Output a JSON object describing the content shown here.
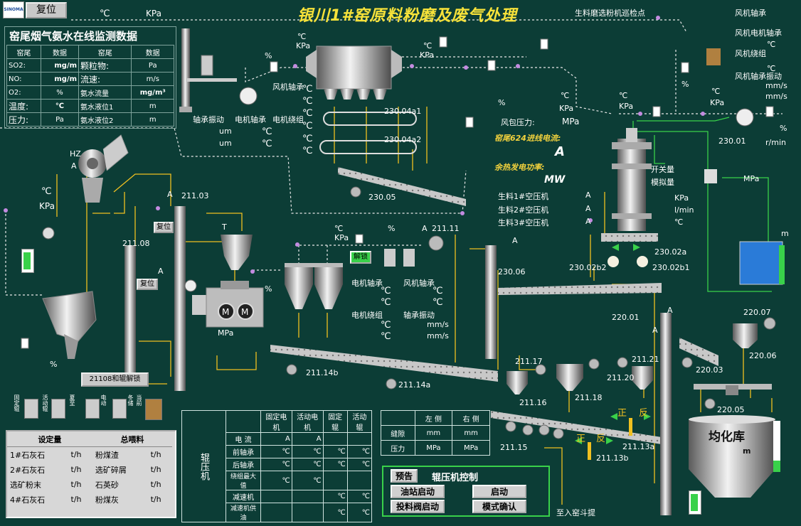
{
  "brand": {
    "logo": "SINOMA"
  },
  "header": {
    "reset_label": "复位",
    "title": "银川1#窑原料粉磨及废气处理",
    "top_temp": "℃",
    "top_kpa": "KPa",
    "patrol": "生料磨选粉机巡检点"
  },
  "monitor": {
    "title": "窑尾烟气氨水在线监测数据",
    "headers": [
      "窑尾",
      "数据",
      "窑尾",
      "数据"
    ],
    "rows": [
      [
        "SO2:",
        "mg/m",
        "颗粒物:",
        "Pa"
      ],
      [
        "NO:",
        "mg/m",
        "流速:",
        "m/s"
      ],
      [
        "O2:",
        "%",
        "氨水流量",
        "mg/m³"
      ],
      [
        "温度:",
        "℃",
        "氨水液位1",
        "m"
      ],
      [
        "压力:",
        "Pa",
        "氨水液位2",
        "m"
      ]
    ]
  },
  "labels": {
    "fan_bearing": "风机轴承",
    "motor_bearing": "电机轴承",
    "motor_winding": "电机绕组",
    "bearing_vib": "轴承振动",
    "um": "um",
    "hz": "HZ",
    "a": "A",
    "c": "℃",
    "kpa": "KPa",
    "mpa": "MPa",
    "pct": "%",
    "ms": "mm/s",
    "rmin": "r/min",
    "m": "m",
    "lmin": "l/min",
    "mw": "MW",
    "t": "T",
    "e23004a1": "230.04a1",
    "e23004a2": "230.04a2",
    "e23005": "230.05",
    "e23001": "230.01",
    "e23002a": "230.02a",
    "e23002b1": "230.02b1",
    "e23002b2": "230.02b2",
    "e23006": "230.06",
    "e22001": "220.01",
    "e22007": "220.07",
    "e22006": "220.06",
    "e22003": "220.03",
    "e22005": "220.05",
    "e21103": "211.03",
    "e21108": "211.08",
    "e21111": "211.11",
    "e21114b": "211.14b",
    "e21114a": "211.14a",
    "e21117": "211.17",
    "e21116": "211.16",
    "e21118": "211.18",
    "e21121": "211.21",
    "e21120": "211.20",
    "e21115": "211.15",
    "e21113a": "211.13a",
    "e21113b": "211.13b",
    "wind_pressure": "风包压力:",
    "kiln_current": "窑尾624进线电流:",
    "waste_heat": "余热发电功率:",
    "comp1": "生料1#空压机",
    "comp2": "生料2#空压机",
    "comp3": "生料3#空压机",
    "switch_qty": "开关量",
    "analog_qty": "模拟量",
    "homog": "均化库",
    "forward": "正",
    "reverse": "反",
    "to_kiln": "至入窑斗提",
    "unlock": "解锁",
    "rf_fan_bearing": "风机轴承",
    "rf_motor_fan_bearing": "风机电机轴承",
    "rf_fan_winding": "风机绕组",
    "rf_fan_vib": "风机轴承振动",
    "reset": "复位",
    "unlock_21108": "21108和辊解锁"
  },
  "side_labels": [
    "固定辊",
    "活动辊",
    "夏至",
    "电动",
    "冬储",
    "当前"
  ],
  "setpoint": {
    "h1": "设定量",
    "h2": "总喂料",
    "rows": [
      [
        "1#石灰石",
        "t/h",
        "粉煤渣",
        "t/h"
      ],
      [
        "2#石灰石",
        "t/h",
        "选矿碎屑",
        "t/h"
      ],
      [
        "选矿粉末",
        "t/h",
        "石英砂",
        "t/h"
      ],
      [
        "4#石灰石",
        "t/h",
        "粉煤灰",
        "t/h"
      ]
    ]
  },
  "roller": {
    "side": "辊压机",
    "headers": [
      "",
      "",
      "固定电机",
      "活动电机",
      "固定辊",
      "活动辊"
    ],
    "rows": [
      [
        "电  流",
        "A",
        "A",
        "",
        ""
      ],
      [
        "前轴承",
        "℃",
        "℃",
        "℃",
        "℃"
      ],
      [
        "后轴承",
        "℃",
        "℃",
        "℃",
        "℃"
      ],
      [
        "绕组最大值",
        "℃",
        "℃",
        "",
        ""
      ],
      [
        "减速机",
        "",
        "",
        "℃",
        "℃"
      ],
      [
        "减速机供油",
        "",
        "",
        "℃",
        "℃"
      ]
    ]
  },
  "gap": {
    "headers": [
      "",
      "左  侧",
      "右  侧"
    ],
    "rows": [
      [
        "缝隙",
        "mm",
        "mm"
      ],
      [
        "压力",
        "MPa",
        "MPa"
      ]
    ]
  },
  "control": {
    "title": "辊压机控制",
    "pre": "预告",
    "oil": "油站启动",
    "start": "启动",
    "valve": "投料阀启动",
    "mode": "模式确认"
  },
  "colors": {
    "bg": "#0c3d36",
    "title": "#f7e23a",
    "duct": "#f0c020",
    "pipe": "#dfdfdf",
    "green_pipe": "#39d14a"
  }
}
